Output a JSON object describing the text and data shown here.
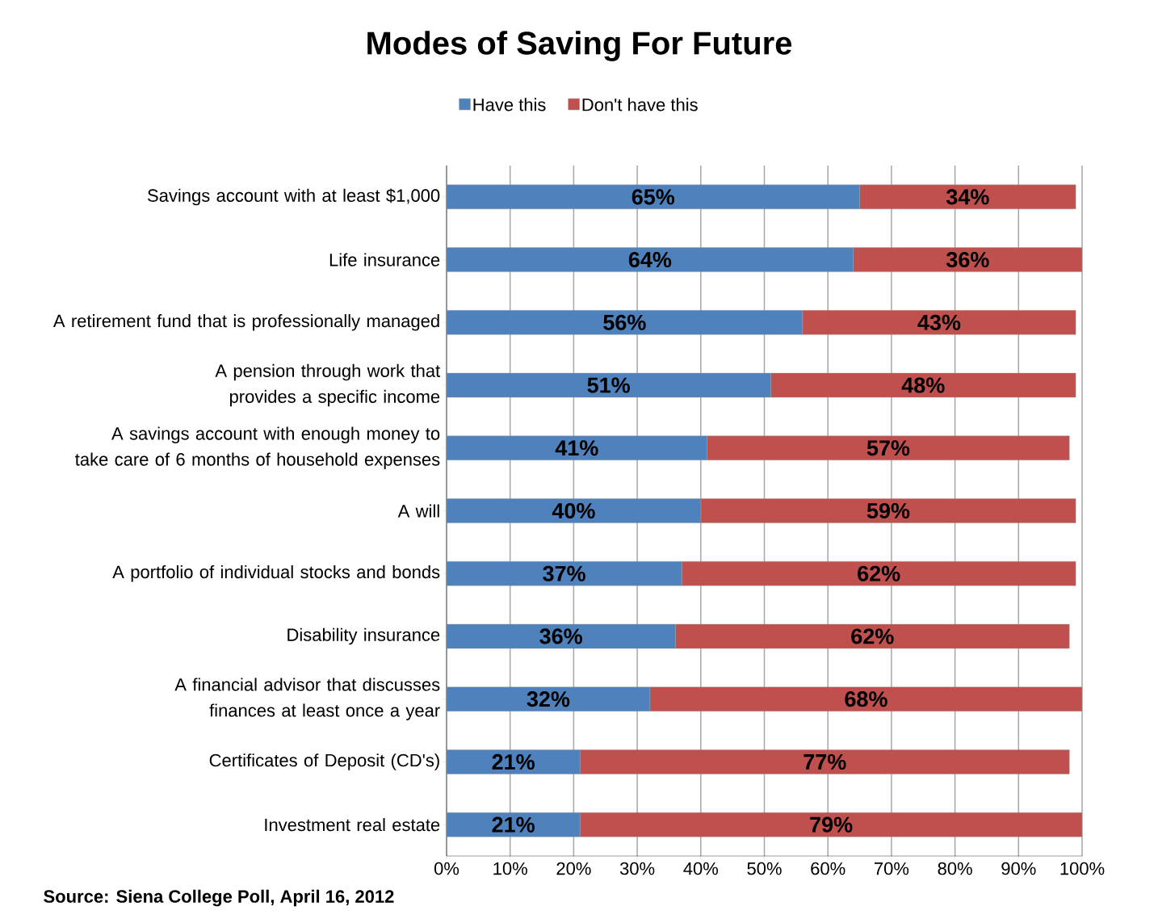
{
  "chart_data": {
    "type": "bar",
    "orientation": "horizontal",
    "stacked": true,
    "title": "Modes of Saving For Future",
    "categories": [
      "Savings account with at least $1,000",
      "Life insurance",
      "A retirement fund that is professionally managed",
      "A pension through work that provides a specific income",
      "A savings account with enough money to take care of 6 months of household expenses",
      "A will",
      "A portfolio of individual stocks and bonds",
      "Disability insurance",
      "A financial advisor that discusses finances at least once a year",
      "Certificates of Deposit (CD's)",
      "Investment real estate"
    ],
    "series": [
      {
        "name": "Have this",
        "color": "#4f81bd",
        "values": [
          65,
          64,
          56,
          51,
          41,
          40,
          37,
          36,
          32,
          21,
          21
        ],
        "value_labels": [
          "65%",
          "64%",
          "56%",
          "51%",
          "41%",
          "40%",
          "37%",
          "36%",
          "32%",
          "21%",
          "21%"
        ]
      },
      {
        "name": "Don't have this",
        "color": "#c0504d",
        "values": [
          34,
          36,
          43,
          48,
          57,
          59,
          62,
          62,
          68,
          77,
          79
        ],
        "value_labels": [
          "34%",
          "36%",
          "43%",
          "48%",
          "57%",
          "59%",
          "62%",
          "62%",
          "68%",
          "77%",
          "79%"
        ]
      }
    ],
    "xlim": [
      0,
      100
    ],
    "xticks": [
      {
        "value": 0,
        "label": "0%"
      },
      {
        "value": 10,
        "label": "10%"
      },
      {
        "value": 20,
        "label": "20%"
      },
      {
        "value": 30,
        "label": "30%"
      },
      {
        "value": 40,
        "label": "40%"
      },
      {
        "value": 50,
        "label": "50%"
      },
      {
        "value": 60,
        "label": "60%"
      },
      {
        "value": 70,
        "label": "70%"
      },
      {
        "value": 80,
        "label": "80%"
      },
      {
        "value": 90,
        "label": "90%"
      },
      {
        "value": 100,
        "label": "100%"
      }
    ],
    "grid": "x",
    "legend": "top",
    "annotations": [
      "Source: Siena College Poll, April 16, 2012"
    ]
  }
}
